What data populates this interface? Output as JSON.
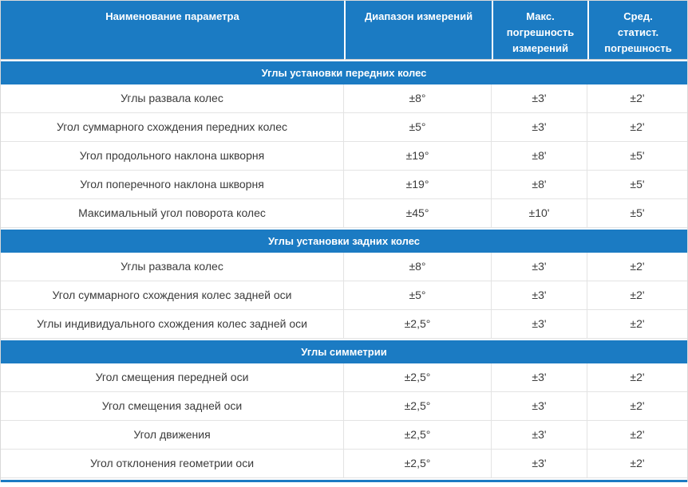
{
  "colors": {
    "accent_blue": "#1b7bc3",
    "header_text": "#ffffff",
    "row_text": "#3b3b3b",
    "grid_border": "#e3e3e3",
    "header_bottom_border": "#c9c9c9"
  },
  "table": {
    "columns": [
      {
        "label": "Наименование параметра"
      },
      {
        "label": "Диапазон измерений"
      },
      {
        "label": "Макс.\nпогрешность\nизмерений"
      },
      {
        "label": "Сред.\nстатист.\nпогрешность"
      }
    ],
    "sections": [
      {
        "title": "Углы установки передних колес",
        "rows": [
          {
            "name": "Углы развала колес",
            "range": "±8°",
            "max_error": "±3'",
            "stat_error": "±2'"
          },
          {
            "name": "Угол суммарного схождения передних колес",
            "range": "±5°",
            "max_error": "±3'",
            "stat_error": "±2'"
          },
          {
            "name": "Угол продольного наклона шкворня",
            "range": "±19°",
            "max_error": "±8'",
            "stat_error": "±5'"
          },
          {
            "name": "Угол поперечного наклона шкворня",
            "range": "±19°",
            "max_error": "±8'",
            "stat_error": "±5'"
          },
          {
            "name": "Максимальный угол поворота колес",
            "range": "±45°",
            "max_error": "±10'",
            "stat_error": "±5'"
          }
        ]
      },
      {
        "title": "Углы установки задних колес",
        "rows": [
          {
            "name": "Углы развала колес",
            "range": "±8°",
            "max_error": "±3'",
            "stat_error": "±2'"
          },
          {
            "name": "Угол суммарного схождения колес задней оси",
            "range": "±5°",
            "max_error": "±3'",
            "stat_error": "±2'"
          },
          {
            "name": "Углы индивидуального схождения колес задней оси",
            "range": "±2,5°",
            "max_error": "±3'",
            "stat_error": "±2'"
          }
        ]
      },
      {
        "title": "Углы симметрии",
        "rows": [
          {
            "name": "Угол смещения передней оси",
            "range": "±2,5°",
            "max_error": "±3'",
            "stat_error": "±2'"
          },
          {
            "name": "Угол смещения задней оси",
            "range": "±2,5°",
            "max_error": "±3'",
            "stat_error": "±2'"
          },
          {
            "name": "Угол движения",
            "range": "±2,5°",
            "max_error": "±3'",
            "stat_error": "±2'"
          },
          {
            "name": "Угол отклонения геометрии оси",
            "range": "±2,5°",
            "max_error": "±3'",
            "stat_error": "±2'"
          }
        ]
      }
    ]
  }
}
